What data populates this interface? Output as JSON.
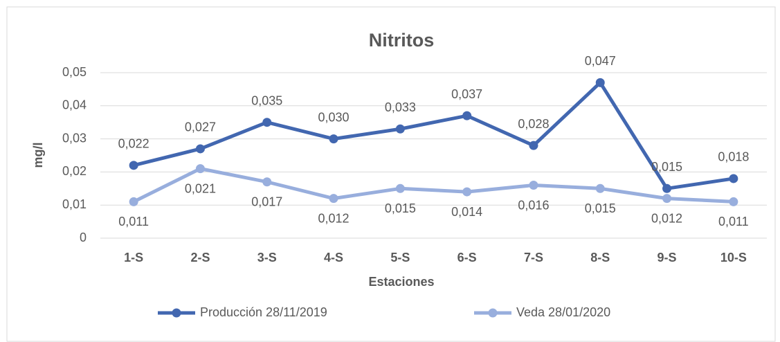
{
  "chart_data": {
    "type": "line",
    "title": "Nitritos",
    "x_label": "Estaciones",
    "y_label": "mg/l",
    "categories": [
      "1-S",
      "2-S",
      "3-S",
      "4-S",
      "5-S",
      "6-S",
      "7-S",
      "8-S",
      "9-S",
      "10-S"
    ],
    "series": [
      {
        "name": "Producción 28/11/2019",
        "color": "#4267b0",
        "values": [
          0.022,
          0.027,
          0.035,
          0.03,
          0.033,
          0.037,
          0.028,
          0.047,
          0.015,
          0.018
        ],
        "value_labels": [
          "0,022",
          "0,027",
          "0,035",
          "0,030",
          "0,033",
          "0,037",
          "0,028",
          "0,047",
          "0,015",
          "0,018"
        ]
      },
      {
        "name": "Veda 28/01/2020",
        "color": "#98aedd",
        "values": [
          0.011,
          0.021,
          0.017,
          0.012,
          0.015,
          0.014,
          0.016,
          0.015,
          0.012,
          0.011
        ],
        "value_labels": [
          "0,011",
          "0,021",
          "0,017",
          "0,012",
          "0,015",
          "0,014",
          "0,016",
          "0,015",
          "0,012",
          "0,011"
        ]
      }
    ],
    "ylim": [
      0,
      0.05
    ],
    "yticks": [
      0,
      {
        "value": 0.01,
        "label": "0,01"
      },
      {
        "value": 0.02,
        "label": "0,02"
      },
      {
        "value": 0.03,
        "label": "0,03"
      },
      {
        "value": 0.04,
        "label": "0,04"
      },
      {
        "value": 0.05,
        "label": "0,05"
      }
    ],
    "grid": true,
    "legend": "bottom"
  }
}
